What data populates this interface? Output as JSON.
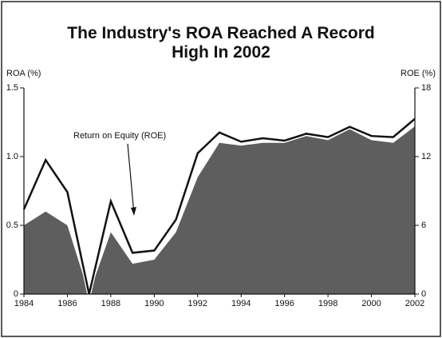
{
  "chart_data": {
    "type": "area-line",
    "title": "The Industry's ROA Reached A Record High In 2002",
    "ylabel": "ROA (%)",
    "y2label": "ROE (%)",
    "annotation": "Return on Equity (ROE)",
    "x": [
      1984,
      1985,
      1986,
      1987,
      1988,
      1989,
      1990,
      1991,
      1992,
      1993,
      1994,
      1995,
      1996,
      1997,
      1998,
      1999,
      2000,
      2001,
      2002
    ],
    "xlim": [
      1984,
      2002
    ],
    "xticks": [
      1984,
      1986,
      1988,
      1990,
      1992,
      1994,
      1996,
      1998,
      2000,
      2002
    ],
    "ylim": [
      0,
      1.5
    ],
    "yticks": [
      0,
      0.5,
      {
        "value": 1,
        "label": "1.0"
      },
      {
        "value": 1.5,
        "label": "1.5"
      }
    ],
    "y2lim": [
      0,
      18
    ],
    "y2ticks": [
      0,
      6,
      12,
      18
    ],
    "series": [
      {
        "name": "ROA",
        "color": "#5e5e5e",
        "kind": "area",
        "values": [
          0.5,
          0.6,
          0.5,
          0,
          0.45,
          0.22,
          0.25,
          0.45,
          0.85,
          1.1,
          1.08,
          1.1,
          1.1,
          1.15,
          1.12,
          1.2,
          1.12,
          1.1,
          1.22
        ]
      },
      {
        "name": "ROE",
        "color": "#111111",
        "kind": "line",
        "axis": "y2",
        "values": [
          7.4,
          11.7,
          8.9,
          0,
          8.1,
          3.6,
          3.8,
          6.5,
          12.3,
          14.1,
          13.3,
          13.6,
          13.4,
          14,
          13.7,
          14.6,
          13.8,
          13.7,
          15.3
        ]
      }
    ]
  }
}
